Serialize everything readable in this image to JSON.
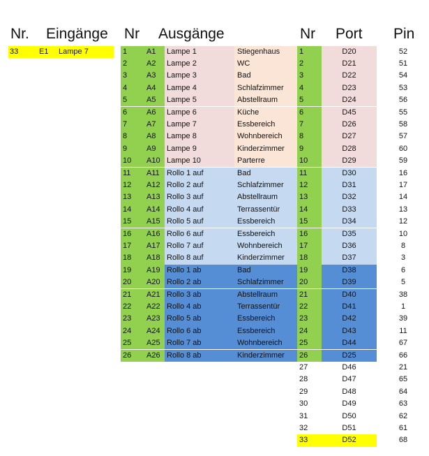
{
  "headers": {
    "nr_in": "Nr.",
    "eingaenge": "Eingänge",
    "nr_out": "Nr",
    "ausgaenge": "Ausgänge",
    "nr_port": "Nr",
    "port": "Port",
    "pin": "Pin"
  },
  "colors": {
    "highlight": "#ffff00",
    "nr_column": "#92d050",
    "lampen": "#f2dcdb",
    "lampen_right": "#fbe5d6",
    "rollo_auf": "#c5d9f1",
    "rollo_ab": "#558ed5"
  },
  "inputs": [
    {
      "nr": "33",
      "code": "E1",
      "name": "Lampe 7"
    }
  ],
  "outputs": [
    {
      "nr": "1",
      "code": "A1",
      "name": "Lampe 1",
      "room": "Stiegenhaus",
      "group": "lampe"
    },
    {
      "nr": "2",
      "code": "A2",
      "name": "Lampe 2",
      "room": "WC",
      "group": "lampe"
    },
    {
      "nr": "3",
      "code": "A3",
      "name": "Lampe 3",
      "room": "Bad",
      "group": "lampe"
    },
    {
      "nr": "4",
      "code": "A4",
      "name": "Lampe 4",
      "room": "Schlafzimmer",
      "group": "lampe"
    },
    {
      "nr": "5",
      "code": "A5",
      "name": "Lampe 5",
      "room": "Abstellraum",
      "group": "lampe"
    },
    {
      "nr": "6",
      "code": "A6",
      "name": "Lampe 6",
      "room": "Küche",
      "group": "lampe"
    },
    {
      "nr": "7",
      "code": "A7",
      "name": "Lampe 7",
      "room": "Essbereich",
      "group": "lampe"
    },
    {
      "nr": "8",
      "code": "A8",
      "name": "Lampe 8",
      "room": "Wohnbereich",
      "group": "lampe"
    },
    {
      "nr": "9",
      "code": "A9",
      "name": "Lampe 9",
      "room": "Kinderzimmer",
      "group": "lampe"
    },
    {
      "nr": "10",
      "code": "A10",
      "name": "Lampe 10",
      "room": "Parterre",
      "group": "lampe"
    },
    {
      "nr": "11",
      "code": "A11",
      "name": "Rollo 1 auf",
      "room": "Bad",
      "group": "auf"
    },
    {
      "nr": "12",
      "code": "A12",
      "name": "Rollo 2 auf",
      "room": "Schlafzimmer",
      "group": "auf"
    },
    {
      "nr": "13",
      "code": "A13",
      "name": "Rollo 3 auf",
      "room": "Abstellraum",
      "group": "auf"
    },
    {
      "nr": "14",
      "code": "A14",
      "name": "Rollo 4 auf",
      "room": "Terrassentür",
      "group": "auf"
    },
    {
      "nr": "15",
      "code": "A15",
      "name": "Rollo 5 auf",
      "room": "Essbereich",
      "group": "auf"
    },
    {
      "nr": "16",
      "code": "A16",
      "name": "Rollo 6 auf",
      "room": "Essbereich",
      "group": "auf"
    },
    {
      "nr": "17",
      "code": "A17",
      "name": "Rollo 7 auf",
      "room": "Wohnbereich",
      "group": "auf"
    },
    {
      "nr": "18",
      "code": "A18",
      "name": "Rollo 8 auf",
      "room": "Kinderzimmer",
      "group": "auf"
    },
    {
      "nr": "19",
      "code": "A19",
      "name": "Rollo 1 ab",
      "room": "Bad",
      "group": "ab"
    },
    {
      "nr": "20",
      "code": "A20",
      "name": "Rollo 2 ab",
      "room": "Schlafzimmer",
      "group": "ab"
    },
    {
      "nr": "21",
      "code": "A21",
      "name": "Rollo 3 ab",
      "room": "Abstellraum",
      "group": "ab"
    },
    {
      "nr": "22",
      "code": "A22",
      "name": "Rollo 4 ab",
      "room": "Terrassentür",
      "group": "ab"
    },
    {
      "nr": "23",
      "code": "A23",
      "name": "Rollo 5 ab",
      "room": "Essbereich",
      "group": "ab"
    },
    {
      "nr": "24",
      "code": "A24",
      "name": "Rollo 6 ab",
      "room": "Essbereich",
      "group": "ab"
    },
    {
      "nr": "25",
      "code": "A25",
      "name": "Rollo 7 ab",
      "room": "Wohnbereich",
      "group": "ab"
    },
    {
      "nr": "26",
      "code": "A26",
      "name": "Rollo 8 ab",
      "room": "Kinderzimmer",
      "group": "ab"
    }
  ],
  "ports": [
    {
      "nr": "1",
      "port": "D20",
      "pin": "52",
      "group": "lampe"
    },
    {
      "nr": "2",
      "port": "D21",
      "pin": "51",
      "group": "lampe"
    },
    {
      "nr": "3",
      "port": "D22",
      "pin": "54",
      "group": "lampe"
    },
    {
      "nr": "4",
      "port": "D23",
      "pin": "53",
      "group": "lampe"
    },
    {
      "nr": "5",
      "port": "D24",
      "pin": "56",
      "group": "lampe"
    },
    {
      "nr": "6",
      "port": "D45",
      "pin": "55",
      "group": "lampe"
    },
    {
      "nr": "7",
      "port": "D26",
      "pin": "58",
      "group": "lampe"
    },
    {
      "nr": "8",
      "port": "D27",
      "pin": "57",
      "group": "lampe"
    },
    {
      "nr": "9",
      "port": "D28",
      "pin": "60",
      "group": "lampe"
    },
    {
      "nr": "10",
      "port": "D29",
      "pin": "59",
      "group": "lampe"
    },
    {
      "nr": "11",
      "port": "D30",
      "pin": "16",
      "group": "auf"
    },
    {
      "nr": "12",
      "port": "D31",
      "pin": "17",
      "group": "auf"
    },
    {
      "nr": "13",
      "port": "D32",
      "pin": "14",
      "group": "auf"
    },
    {
      "nr": "14",
      "port": "D33",
      "pin": "13",
      "group": "auf"
    },
    {
      "nr": "15",
      "port": "D34",
      "pin": "12",
      "group": "auf"
    },
    {
      "nr": "16",
      "port": "D35",
      "pin": "10",
      "group": "auf"
    },
    {
      "nr": "17",
      "port": "D36",
      "pin": "8",
      "group": "auf"
    },
    {
      "nr": "18",
      "port": "D37",
      "pin": "3",
      "group": "auf"
    },
    {
      "nr": "19",
      "port": "D38",
      "pin": "6",
      "group": "ab"
    },
    {
      "nr": "20",
      "port": "D39",
      "pin": "5",
      "group": "ab"
    },
    {
      "nr": "21",
      "port": "D40",
      "pin": "38",
      "group": "ab"
    },
    {
      "nr": "22",
      "port": "D41",
      "pin": "1",
      "group": "ab"
    },
    {
      "nr": "23",
      "port": "D42",
      "pin": "39",
      "group": "ab"
    },
    {
      "nr": "24",
      "port": "D43",
      "pin": "11",
      "group": "ab"
    },
    {
      "nr": "25",
      "port": "D44",
      "pin": "67",
      "group": "ab"
    },
    {
      "nr": "26",
      "port": "D25",
      "pin": "66",
      "group": "ab"
    },
    {
      "nr": "27",
      "port": "D46",
      "pin": "21",
      "group": "none"
    },
    {
      "nr": "28",
      "port": "D47",
      "pin": "65",
      "group": "none"
    },
    {
      "nr": "29",
      "port": "D48",
      "pin": "64",
      "group": "none"
    },
    {
      "nr": "30",
      "port": "D49",
      "pin": "63",
      "group": "none"
    },
    {
      "nr": "31",
      "port": "D50",
      "pin": "62",
      "group": "none"
    },
    {
      "nr": "32",
      "port": "D51",
      "pin": "61",
      "group": "none"
    },
    {
      "nr": "33",
      "port": "D52",
      "pin": "68",
      "group": "highlight"
    }
  ]
}
